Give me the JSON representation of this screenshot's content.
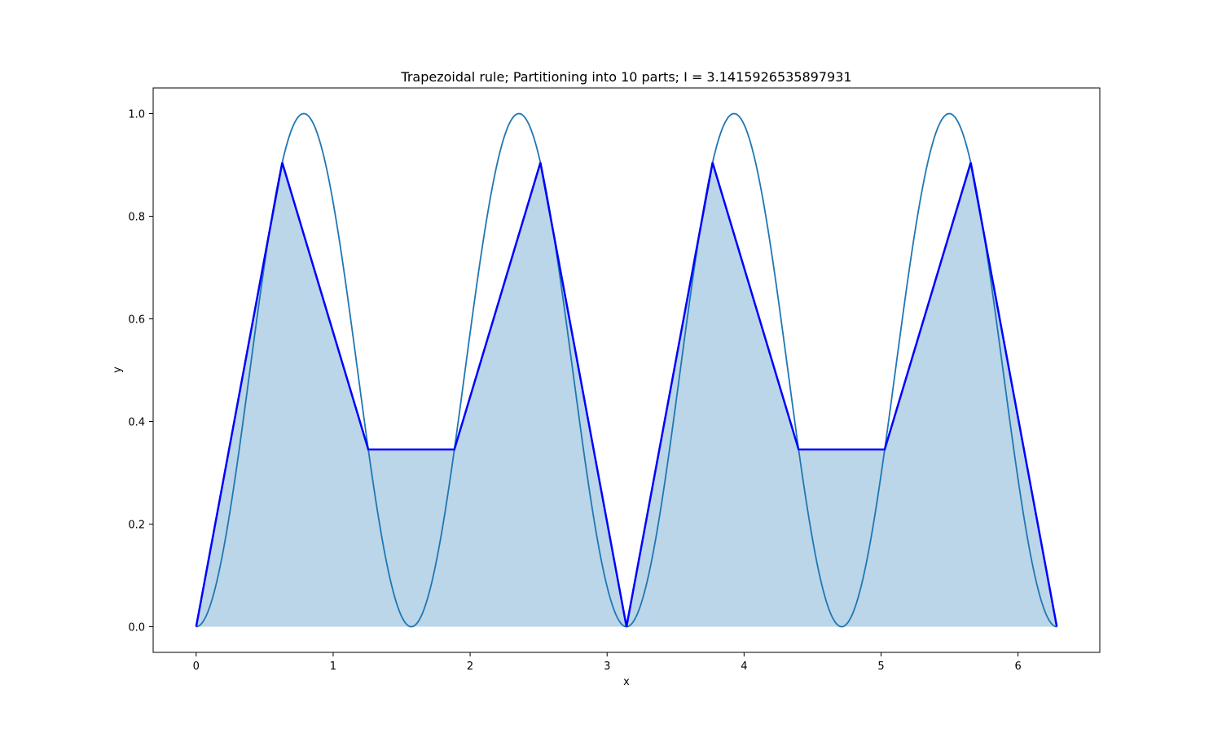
{
  "chart_data": {
    "type": "line",
    "title": "Trapezoidal rule; Partitioning into 10 parts; I = 3.1415926535897931",
    "xlabel": "x",
    "ylabel": "y",
    "xlim": [
      -0.314,
      6.597
    ],
    "ylim": [
      -0.05,
      1.05
    ],
    "xticks": [
      0,
      1,
      2,
      3,
      4,
      5,
      6
    ],
    "xtick_labels": [
      "0",
      "1",
      "2",
      "3",
      "4",
      "5",
      "6"
    ],
    "yticks": [
      0.0,
      0.2,
      0.4,
      0.6,
      0.8,
      1.0
    ],
    "ytick_labels": [
      "0.0",
      "0.2",
      "0.4",
      "0.6",
      "0.8",
      "1.0"
    ],
    "grid": false,
    "series": [
      {
        "kind": "curve",
        "color": "#1f77b4",
        "formula": "sin(2x)^2",
        "x_range": [
          0,
          6.283185307179586
        ]
      },
      {
        "kind": "trapezoid",
        "color": "#0000ff",
        "fill_color": "#1f77b4",
        "fill_opacity": 0.3,
        "x": [
          0,
          0.628319,
          1.256637,
          1.884956,
          2.513274,
          3.141593,
          3.769911,
          4.39823,
          5.026548,
          5.654867,
          6.283185
        ],
        "y": [
          0,
          0.904508,
          0.345492,
          0.345492,
          0.904508,
          0,
          0.904508,
          0.345492,
          0.345492,
          0.904508,
          0
        ]
      }
    ]
  }
}
